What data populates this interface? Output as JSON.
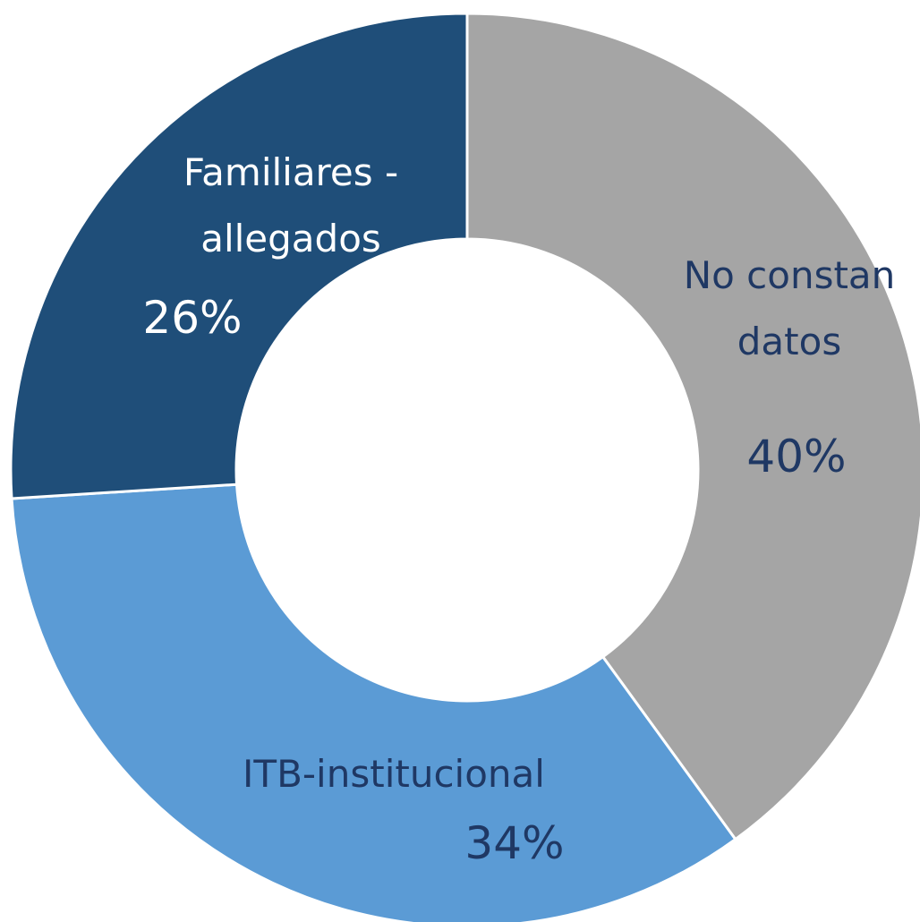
{
  "chart_data": {
    "type": "donut",
    "categories": [
      "No constan datos",
      "ITB-institucional",
      "Familiares - allegados"
    ],
    "values": [
      40,
      34,
      26
    ],
    "value_labels": [
      "40%",
      "34%",
      "26%"
    ],
    "colors": [
      "#a5a5a5",
      "#5b9bd5",
      "#1f4e79"
    ],
    "label_colors": [
      "#1f3864",
      "#1f3864",
      "#ffffff"
    ]
  }
}
